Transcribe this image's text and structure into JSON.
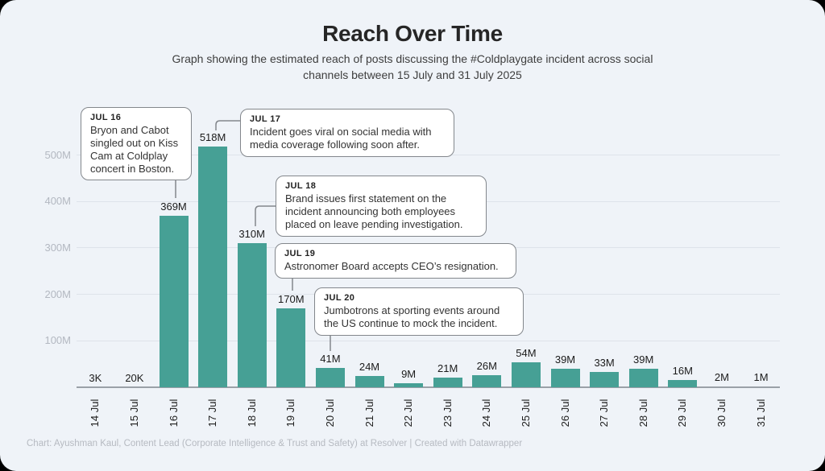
{
  "header": {
    "title": "Reach Over Time",
    "subtitle": "Graph showing the estimated reach of posts discussing the #Coldplaygate incident across social channels between 15 July and 31 July 2025"
  },
  "chart_data": {
    "type": "bar",
    "title": "Reach Over Time",
    "xlabel": "",
    "ylabel": "",
    "legend": "none",
    "grid": true,
    "bar_color": "#46a095",
    "categories": [
      "14 Jul",
      "15 Jul",
      "16 Jul",
      "17 Jul",
      "18 Jul",
      "19 Jul",
      "20 Jul",
      "21 Jul",
      "22 Jul",
      "23 Jul",
      "24 Jul",
      "25 Jul",
      "26 Jul",
      "27 Jul",
      "28 Jul",
      "29 Jul",
      "30 Jul",
      "31 Jul"
    ],
    "values_millions": [
      0.003,
      0.02,
      369,
      518,
      310,
      170,
      41,
      24,
      9,
      21,
      26,
      54,
      39,
      33,
      39,
      16,
      2,
      1
    ],
    "value_labels": [
      "3K",
      "20K",
      "369M",
      "518M",
      "310M",
      "170M",
      "41M",
      "24M",
      "9M",
      "21M",
      "26M",
      "54M",
      "39M",
      "33M",
      "39M",
      "16M",
      "2M",
      "1M"
    ],
    "ylim": [
      0,
      550
    ],
    "yticks": [
      {
        "value": 100,
        "label": "100M"
      },
      {
        "value": 200,
        "label": "200M"
      },
      {
        "value": 300,
        "label": "300M"
      },
      {
        "value": 400,
        "label": "400M"
      },
      {
        "value": 500,
        "label": "500M"
      }
    ],
    "annotations": [
      {
        "date": "JUL 16",
        "text": "Bryon and Cabot singled out on Kiss Cam at Coldplay concert in Boston."
      },
      {
        "date": "JUL 17",
        "text": "Incident goes viral on social media with media coverage following soon after."
      },
      {
        "date": "JUL 18",
        "text": "Brand issues first statement on the incident announcing both employees placed on leave pending investigation."
      },
      {
        "date": "JUL 19",
        "text": "Astronomer Board accepts CEO’s resignation."
      },
      {
        "date": "JUL 20",
        "text": "Jumbotrons at sporting events around the US continue to mock the incident."
      }
    ]
  },
  "footer": {
    "credit": "Chart: Ayushman Kaul, Content Lead (Corporate Intelligence & Trust and Safety) at Resolver | Created with Datawrapper"
  }
}
